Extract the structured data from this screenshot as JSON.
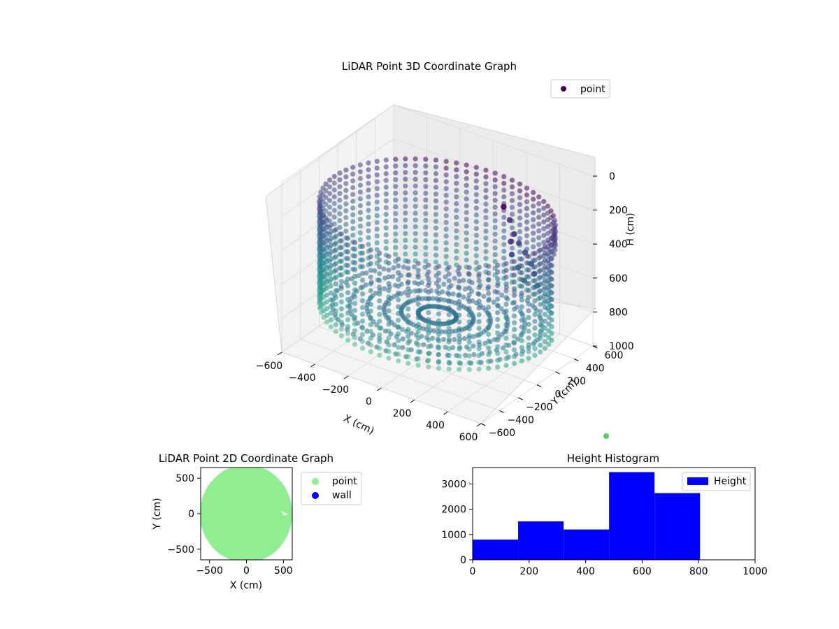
{
  "chart_data": [
    {
      "type": "scatter3d",
      "title": "LiDAR Point 3D Coordinate Graph",
      "xlabel": "X (cm)",
      "ylabel": "Y (cm)",
      "zlabel": "H (cm)",
      "xlim": [
        -600,
        600
      ],
      "ylim": [
        -600,
        600
      ],
      "zlim": [
        0,
        1000
      ],
      "z_inverted": true,
      "xticks": [
        -600,
        -400,
        -200,
        0,
        200,
        400,
        600
      ],
      "yticks": [
        -600,
        -400,
        -200,
        0,
        200,
        400,
        600
      ],
      "zticks": [
        0,
        200,
        400,
        600,
        800,
        1000
      ],
      "legend": {
        "entries": [
          "point"
        ],
        "placement": "top-right"
      },
      "colormap": "viridis",
      "shape": {
        "kind": "cylinder",
        "radius": 620,
        "h_min": 200,
        "h_max": 800,
        "gap_angle_deg": [
          20,
          40
        ]
      },
      "interior_points": [
        {
          "x": 130,
          "y": 480,
          "h": 300,
          "color": "#440154"
        },
        {
          "x": 200,
          "y": 420,
          "h": 330,
          "color": "#46317e"
        },
        {
          "x": 250,
          "y": 380,
          "h": 380,
          "color": "#46317e"
        },
        {
          "x": 300,
          "y": 340,
          "h": 400,
          "color": "#3f4889"
        },
        {
          "x": 360,
          "y": 300,
          "h": 420,
          "color": "#3f4889"
        },
        {
          "x": 420,
          "y": 260,
          "h": 450,
          "color": "#365c8d"
        },
        {
          "x": 460,
          "y": 220,
          "h": 480,
          "color": "#365c8d"
        },
        {
          "x": 500,
          "y": 180,
          "h": 520,
          "color": "#2e6e8e"
        },
        {
          "x": 240,
          "y": 360,
          "h": 420,
          "color": "#46317e"
        },
        {
          "x": 280,
          "y": 300,
          "h": 460,
          "color": "#3f4889"
        },
        {
          "x": 340,
          "y": 260,
          "h": 500,
          "color": "#365c8d"
        },
        {
          "x": 400,
          "y": 220,
          "h": 540,
          "color": "#2e6e8e"
        }
      ],
      "extra_point": {
        "color": "#5ec962"
      }
    },
    {
      "type": "scatter",
      "title": "LiDAR Point 2D Coordinate Graph",
      "xlabel": "X (cm)",
      "ylabel": "Y (cm)",
      "xlim": [
        -620,
        620
      ],
      "ylim": [
        -650,
        650
      ],
      "xticks": [
        -500,
        0,
        500
      ],
      "yticks": [
        -500,
        0,
        500
      ],
      "series": [
        {
          "name": "point",
          "color": "#90ee90",
          "shape": "filled-disc",
          "radius": 620
        },
        {
          "name": "wall",
          "color": "#0000ff"
        }
      ],
      "legend": {
        "placement": "outside-right"
      }
    },
    {
      "type": "histogram",
      "title": "Height Histogram",
      "xlim": [
        0,
        1000
      ],
      "ylim": [
        0,
        3650
      ],
      "xticks": [
        0,
        200,
        400,
        600,
        800,
        1000
      ],
      "yticks": [
        0,
        1000,
        2000,
        3000
      ],
      "bins": [
        {
          "start": 0,
          "end": 161,
          "count": 800
        },
        {
          "start": 161,
          "end": 322,
          "count": 1520
        },
        {
          "start": 322,
          "end": 483,
          "count": 1200
        },
        {
          "start": 483,
          "end": 644,
          "count": 3470
        },
        {
          "start": 644,
          "end": 805,
          "count": 2640
        }
      ],
      "series": [
        {
          "name": "Height",
          "color": "#0000ff"
        }
      ],
      "legend": {
        "placement": "top-right"
      }
    }
  ]
}
